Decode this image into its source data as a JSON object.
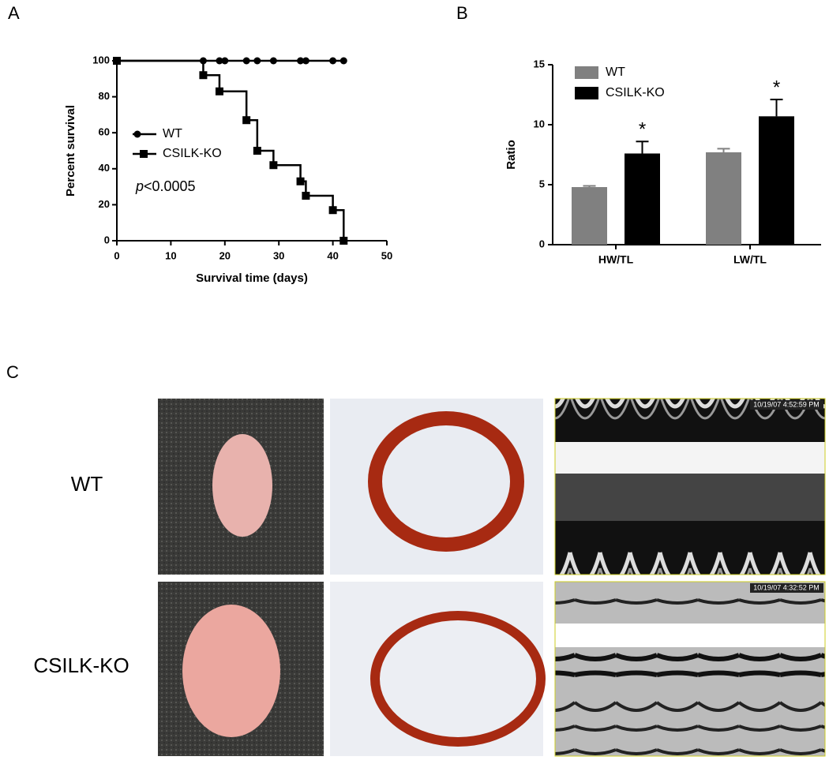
{
  "panel_labels": [
    "A",
    "B",
    "C"
  ],
  "chart_data": [
    {
      "type": "line",
      "step": true,
      "xlabel": "Survival time (days)",
      "ylabel": "Percent survival",
      "xlim": [
        0,
        50
      ],
      "xticks": [
        0,
        10,
        20,
        30,
        40,
        50
      ],
      "ylim": [
        0,
        100
      ],
      "yticks": [
        0,
        20,
        40,
        60,
        80,
        100
      ],
      "legend": "left",
      "annotation": [
        "p",
        "<0.0005"
      ],
      "series": [
        {
          "name": "WT",
          "color": "#000000",
          "marker": "circle",
          "x": [
            0,
            16,
            19,
            20,
            24,
            26,
            29,
            34,
            35,
            40,
            42
          ],
          "values": [
            100,
            100,
            100,
            100,
            100,
            100,
            100,
            100,
            100,
            100,
            100
          ]
        },
        {
          "name": "CSILK-KO",
          "color": "#000000",
          "marker": "square",
          "x": [
            0,
            16,
            19,
            24,
            26,
            29,
            34,
            35,
            40,
            42
          ],
          "values": [
            100,
            92,
            83,
            67,
            50,
            42,
            33,
            25,
            17,
            0
          ]
        }
      ]
    },
    {
      "type": "bar",
      "ylabel": "Ratio",
      "categories": [
        "HW/TL",
        "LW/TL"
      ],
      "ylim": [
        0,
        15
      ],
      "yticks": [
        0,
        5,
        10,
        15
      ],
      "legend": "upper left",
      "series": [
        {
          "name": "WT",
          "color": "#808080",
          "values": [
            4.8,
            7.7
          ],
          "errors": [
            0.1,
            0.3
          ]
        },
        {
          "name": "CSILK-KO",
          "color": "#000000",
          "values": [
            7.6,
            10.7
          ],
          "errors": [
            1.0,
            1.4
          ],
          "annotations": [
            "*",
            "*"
          ]
        }
      ]
    }
  ],
  "row_labels": [
    "WT",
    "CSILK-KO"
  ],
  "echo_timestamps": [
    "10/19/07 4:52:59 PM",
    "10/19/07 4:32:52 PM"
  ]
}
